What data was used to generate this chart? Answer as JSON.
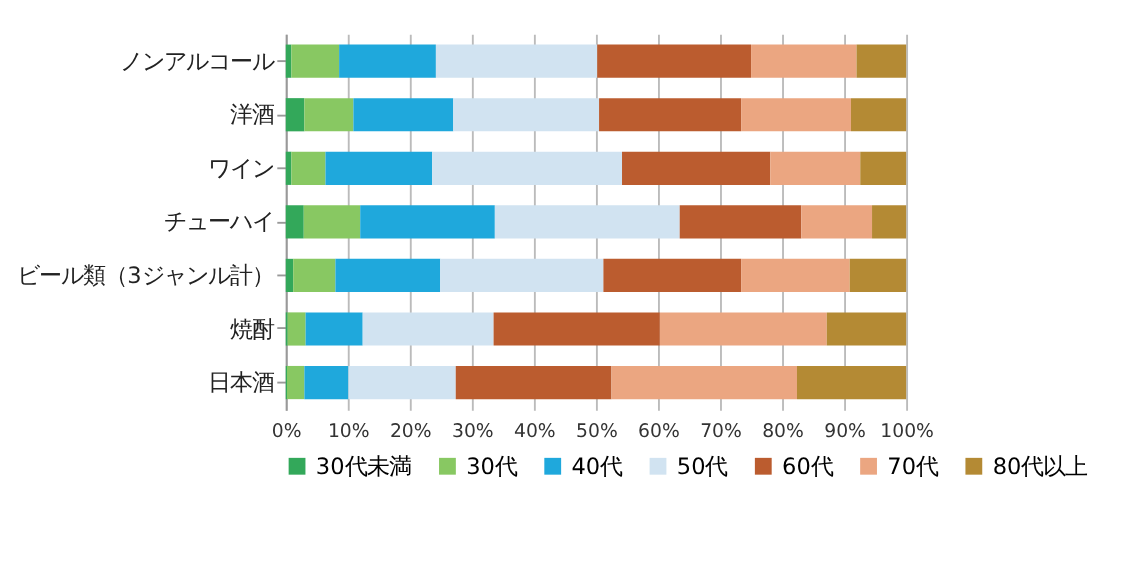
{
  "chart_data": {
    "type": "bar",
    "orientation": "horizontal",
    "stacked": true,
    "categories": [
      "ノンアルコール",
      "洋酒",
      "ワイン",
      "チューハイ",
      "ビール類（3ジャンル計）",
      "焼酎",
      "日本酒"
    ],
    "series": [
      {
        "name": "30代未満",
        "color": "#33a85a",
        "values": [
          0.9,
          3.0,
          0.9,
          2.9,
          1.2,
          0.3,
          0.2
        ]
      },
      {
        "name": "30代",
        "color": "#88c862",
        "values": [
          7.7,
          7.9,
          5.5,
          9.1,
          6.8,
          2.9,
          2.8
        ]
      },
      {
        "name": "40代",
        "color": "#1fa8dc",
        "values": [
          15.6,
          16.1,
          17.2,
          21.7,
          16.9,
          9.2,
          7.1
        ]
      },
      {
        "name": "50代",
        "color": "#d1e3f1",
        "values": [
          26.0,
          23.5,
          30.6,
          29.8,
          26.3,
          21.1,
          17.3
        ]
      },
      {
        "name": "60代",
        "color": "#bb5c2f",
        "values": [
          24.8,
          22.9,
          23.9,
          19.6,
          22.2,
          26.8,
          25.1
        ]
      },
      {
        "name": "70代",
        "color": "#eba681",
        "values": [
          17.0,
          17.7,
          14.5,
          11.4,
          17.5,
          26.9,
          29.9
        ]
      },
      {
        "name": "80代以上",
        "color": "#b48a34",
        "values": [
          8.0,
          8.9,
          7.4,
          5.5,
          9.1,
          12.8,
          17.6
        ]
      }
    ],
    "xlim": [
      0,
      100
    ],
    "xticks": [
      {
        "value": 0,
        "label": "0%"
      },
      {
        "value": 10,
        "label": "10%"
      },
      {
        "value": 20,
        "label": "20%"
      },
      {
        "value": 30,
        "label": "30%"
      },
      {
        "value": 40,
        "label": "40%"
      },
      {
        "value": 50,
        "label": "50%"
      },
      {
        "value": 60,
        "label": "60%"
      },
      {
        "value": 70,
        "label": "70%"
      },
      {
        "value": 80,
        "label": "80%"
      },
      {
        "value": 90,
        "label": "90%"
      },
      {
        "value": 100,
        "label": "100%"
      }
    ],
    "grid": "x",
    "legend": "bottom"
  }
}
